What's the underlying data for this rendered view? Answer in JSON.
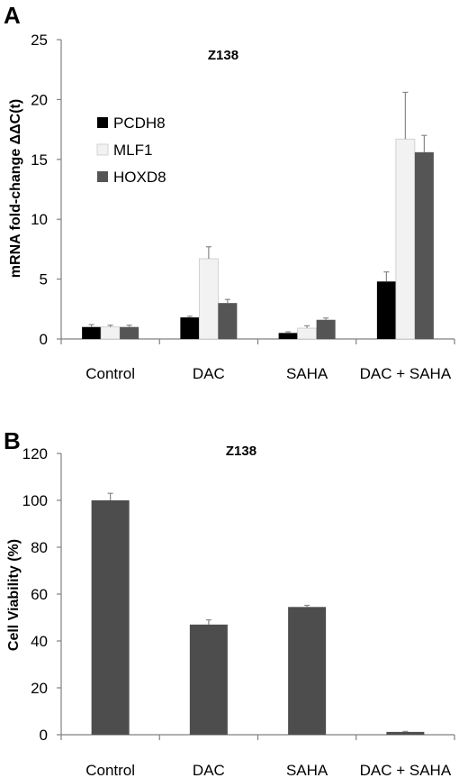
{
  "chart_data": [
    {
      "type": "bar",
      "panel": "A",
      "title": "Z138",
      "ylabel": "mRNA fold-change ΔΔC(t)",
      "xlabel": "",
      "ylim": [
        0,
        25
      ],
      "yticks": [
        0,
        5,
        10,
        15,
        20,
        25
      ],
      "categories": [
        "Control",
        "DAC",
        "SAHA",
        "DAC + SAHA"
      ],
      "legend_position": "upper-left",
      "series": [
        {
          "name": "PCDH8",
          "color": "#000000",
          "values": [
            1.0,
            1.8,
            0.5,
            4.8
          ],
          "errors": [
            0.2,
            0.1,
            0.1,
            0.8
          ]
        },
        {
          "name": "MLF1",
          "color": "#f2f2f2",
          "values": [
            1.0,
            6.7,
            0.9,
            16.7
          ],
          "errors": [
            0.15,
            1.0,
            0.2,
            3.9
          ]
        },
        {
          "name": "HOXD8",
          "color": "#555555",
          "values": [
            1.0,
            3.0,
            1.6,
            15.6
          ],
          "errors": [
            0.15,
            0.3,
            0.15,
            1.4
          ]
        }
      ]
    },
    {
      "type": "bar",
      "panel": "B",
      "title": "Z138",
      "ylabel": "Cell Viability (%)",
      "xlabel": "",
      "ylim": [
        0,
        120
      ],
      "yticks": [
        0,
        20,
        40,
        60,
        80,
        100,
        120
      ],
      "categories": [
        "Control",
        "DAC",
        "SAHA",
        "DAC + SAHA"
      ],
      "series": [
        {
          "color": "#4d4d4d",
          "values": [
            100,
            47,
            54.5,
            1.2
          ],
          "errors": [
            3,
            2,
            0.7,
            0.2
          ]
        }
      ]
    }
  ]
}
